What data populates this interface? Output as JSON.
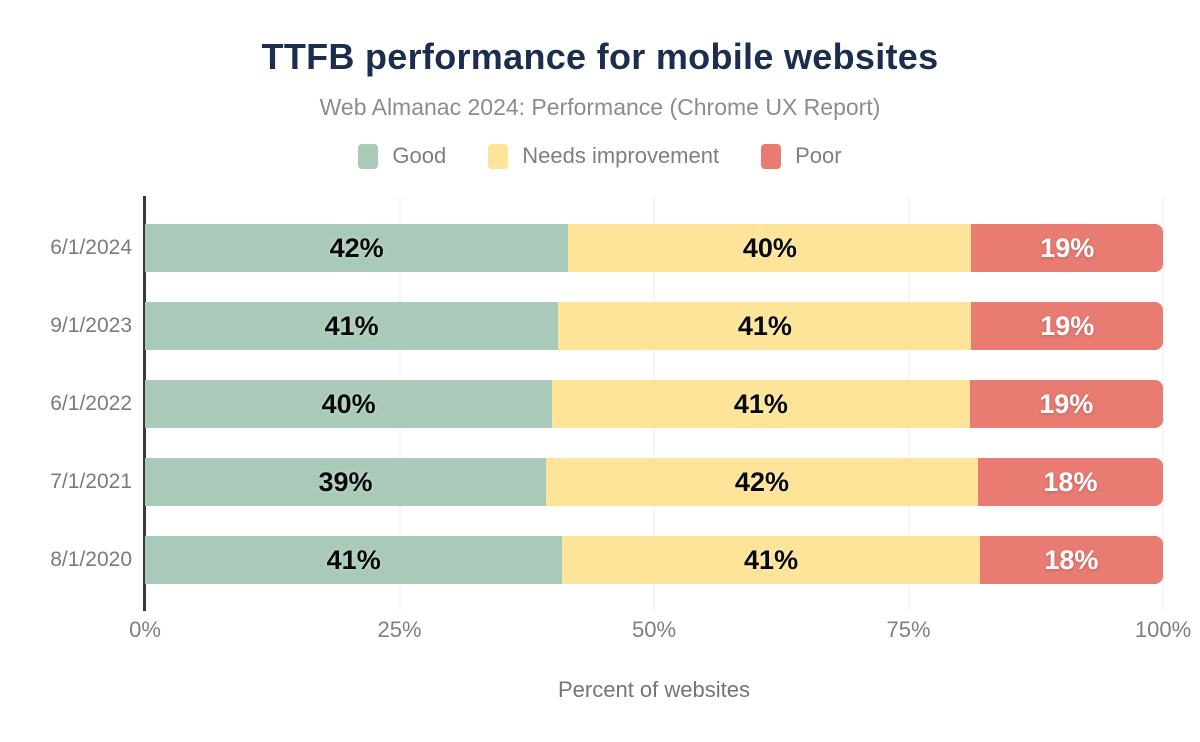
{
  "chart_data": {
    "type": "bar",
    "orientation": "horizontal-stacked",
    "title": "TTFB performance for mobile websites",
    "subtitle": "Web Almanac 2024: Performance (Chrome UX Report)",
    "xlabel": "Percent of websites",
    "xlim": [
      0,
      100
    ],
    "xticks": [
      {
        "label": "0%",
        "value": 0
      },
      {
        "label": "25%",
        "value": 25
      },
      {
        "label": "50%",
        "value": 50
      },
      {
        "label": "75%",
        "value": 75
      },
      {
        "label": "100%",
        "value": 100
      }
    ],
    "grid": "vertical-light",
    "legend_position": "top-center",
    "categories": [
      "6/1/2024",
      "9/1/2023",
      "6/1/2022",
      "7/1/2021",
      "8/1/2020"
    ],
    "series": [
      {
        "name": "Good",
        "color": "#a9cab8",
        "label_color": "dark",
        "values": [
          42,
          41,
          40,
          39,
          41
        ]
      },
      {
        "name": "Needs improvement",
        "color": "#fde499",
        "label_color": "dark",
        "values": [
          40,
          41,
          41,
          42,
          41
        ]
      },
      {
        "name": "Poor",
        "color": "#e87b72",
        "label_color": "light",
        "values": [
          19,
          19,
          19,
          18,
          18
        ]
      }
    ],
    "value_suffix": "%"
  },
  "colors": {
    "title": "#1c2e4e",
    "subtitle_text": "#8c8c8c",
    "axis_text": "#7b7b7b",
    "axis_line": "#383838",
    "gridline": "#ececec",
    "background": "#ffffff"
  }
}
